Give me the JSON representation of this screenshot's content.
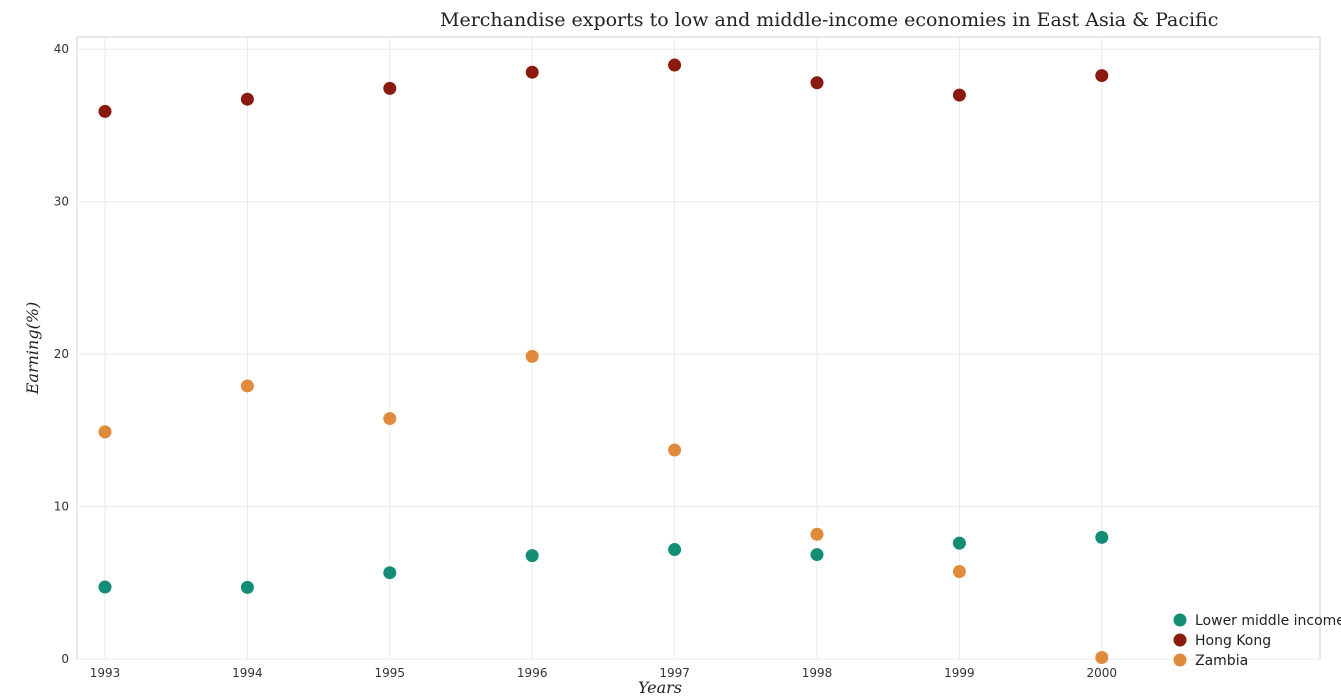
{
  "chart_data": {
    "type": "scatter",
    "title": "Merchandise exports to low and middle-income economies in East Asia & Pacific",
    "xlabel": "Years",
    "ylabel": "Earning(%)",
    "categories": [
      "1993",
      "1994",
      "1995",
      "1996",
      "1997",
      "1998",
      "1999",
      "2000"
    ],
    "ylim": [
      0,
      40.8
    ],
    "yticks": [
      "0",
      "10",
      "20",
      "30",
      "40"
    ],
    "grid": true,
    "legend_position": "bottom-right",
    "series": [
      {
        "name": "Lower middle income",
        "color": "#138d75",
        "values": [
          4.72,
          4.7,
          5.66,
          6.78,
          7.18,
          6.85,
          7.6,
          7.98
        ]
      },
      {
        "name": "Hong Kong",
        "color": "#8b1a0e",
        "values": [
          35.92,
          36.72,
          37.43,
          38.49,
          38.96,
          37.8,
          36.99,
          38.27
        ]
      },
      {
        "name": "Zambia",
        "color": "#e08a3c",
        "values": [
          14.9,
          17.91,
          15.77,
          19.85,
          13.71,
          8.18,
          5.74,
          0.1
        ]
      }
    ]
  }
}
